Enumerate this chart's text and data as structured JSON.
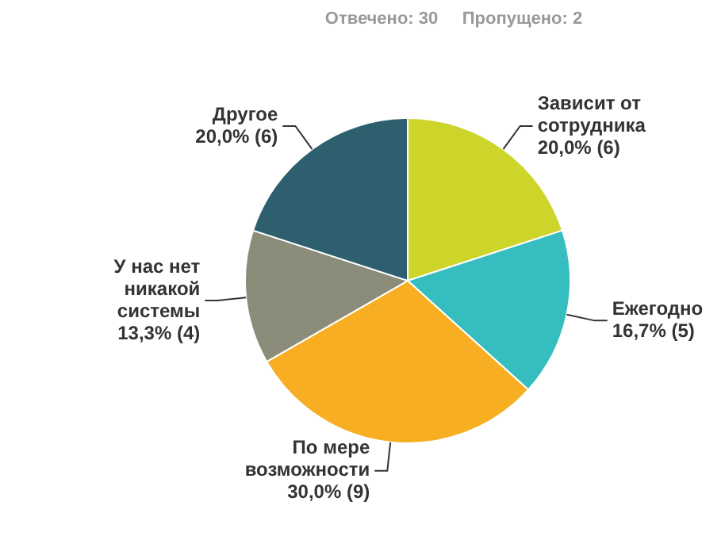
{
  "chart_data": {
    "type": "pie",
    "title": "Отвечено: 30     Пропущено: 2",
    "categories": [
      "Зависит от сотрудника",
      "Ежегодно",
      "По мере возможности",
      "У нас нет никакой системы",
      "Другое"
    ],
    "values": [
      20.0,
      16.7,
      30.0,
      13.3,
      20.0
    ],
    "value_labels": [
      "20,0% (6)",
      "16,7% (5)",
      "30,0% (9)",
      "13,3% (4)",
      "20,0% (6)"
    ],
    "colors": [
      "#cdd42a",
      "#35bdbf",
      "#f7ae22",
      "#8c8c7a",
      "#2e5f6e"
    ],
    "legend": false
  }
}
